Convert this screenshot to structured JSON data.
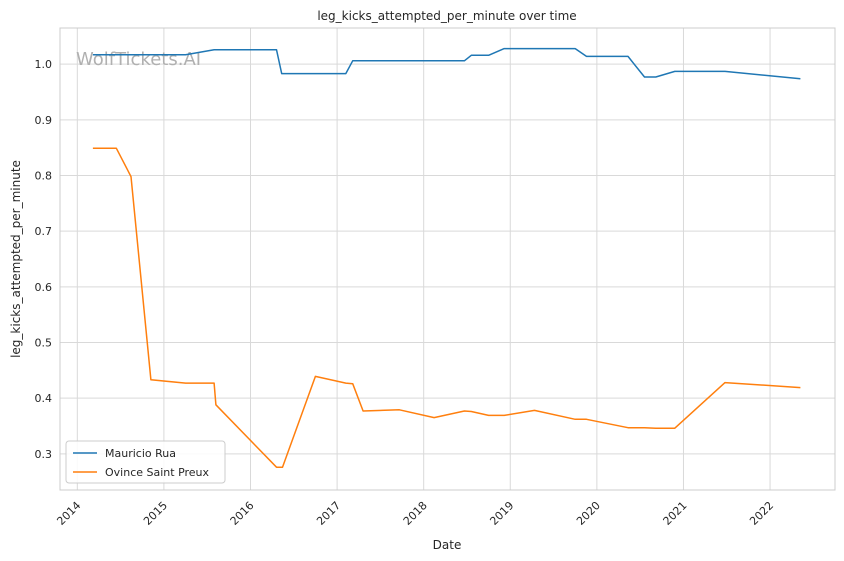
{
  "chart_data": {
    "type": "line",
    "title": "leg_kicks_attempted_per_minute over time",
    "xlabel": "Date",
    "ylabel": "leg_kicks_attempted_per_minute",
    "xlim": [
      2013.8,
      2022.75
    ],
    "ylim": [
      0.235,
      1.065
    ],
    "x_ticks": [
      "2014",
      "2015",
      "2016",
      "2017",
      "2018",
      "2019",
      "2020",
      "2021",
      "2022"
    ],
    "y_ticks": [
      "0.3",
      "0.4",
      "0.5",
      "0.6",
      "0.7",
      "0.8",
      "0.9",
      "1.0"
    ],
    "grid": true,
    "legend_position": "lower-left",
    "watermark": "WolfTickets.AI",
    "series": [
      {
        "name": "Mauricio Rua",
        "color": "#1f77b4",
        "x": [
          2014.18,
          2014.5,
          2015.25,
          2015.58,
          2016.3,
          2016.36,
          2017.1,
          2017.18,
          2018.47,
          2018.55,
          2018.75,
          2018.93,
          2019.75,
          2019.88,
          2020.36,
          2020.55,
          2020.68,
          2020.9,
          2021.48,
          2022.35
        ],
        "y": [
          1.017,
          1.017,
          1.017,
          1.026,
          1.026,
          0.983,
          0.983,
          1.006,
          1.006,
          1.016,
          1.016,
          1.028,
          1.028,
          1.014,
          1.014,
          0.977,
          0.977,
          0.987,
          0.987,
          0.974
        ]
      },
      {
        "name": "Ovince Saint Preux",
        "color": "#ff7f0e",
        "x": [
          2014.18,
          2014.45,
          2014.62,
          2014.85,
          2015.25,
          2015.58,
          2015.6,
          2016.3,
          2016.37,
          2016.75,
          2017.1,
          2017.18,
          2017.3,
          2017.72,
          2018.12,
          2018.47,
          2018.55,
          2018.75,
          2018.93,
          2019.28,
          2019.75,
          2019.88,
          2020.36,
          2020.55,
          2020.68,
          2020.9,
          2021.48,
          2022.35
        ],
        "y": [
          0.849,
          0.849,
          0.798,
          0.433,
          0.427,
          0.427,
          0.388,
          0.276,
          0.276,
          0.439,
          0.427,
          0.426,
          0.377,
          0.379,
          0.365,
          0.377,
          0.376,
          0.369,
          0.369,
          0.378,
          0.362,
          0.362,
          0.347,
          0.347,
          0.346,
          0.346,
          0.428,
          0.419
        ]
      }
    ]
  }
}
